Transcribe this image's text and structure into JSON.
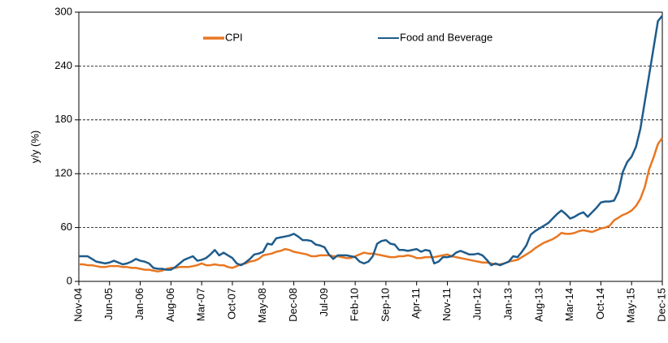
{
  "chart_data": {
    "type": "line",
    "ylabel": "y/y (%)",
    "categories": [
      "Nov-04",
      null,
      null,
      null,
      null,
      null,
      null,
      "Jun-05",
      null,
      null,
      null,
      null,
      null,
      null,
      "Jan-06",
      null,
      null,
      null,
      null,
      null,
      null,
      "Aug-06",
      null,
      null,
      null,
      null,
      null,
      null,
      "Mar-07",
      null,
      null,
      null,
      null,
      null,
      null,
      "Oct-07",
      null,
      null,
      null,
      null,
      null,
      null,
      "May-08",
      null,
      null,
      null,
      null,
      null,
      null,
      "Dec-08",
      null,
      null,
      null,
      null,
      null,
      null,
      "Jul-09",
      null,
      null,
      null,
      null,
      null,
      null,
      "Feb-10",
      null,
      null,
      null,
      null,
      null,
      null,
      "Sep-10",
      null,
      null,
      null,
      null,
      null,
      null,
      "Apr-11",
      null,
      null,
      null,
      null,
      null,
      null,
      "Nov-11",
      null,
      null,
      null,
      null,
      null,
      null,
      "Jun-12",
      null,
      null,
      null,
      null,
      null,
      null,
      "Jan-13",
      null,
      null,
      null,
      null,
      null,
      null,
      "Aug-13",
      null,
      null,
      null,
      null,
      null,
      null,
      "Mar-14",
      null,
      null,
      null,
      null,
      null,
      null,
      "Oct-14",
      null,
      null,
      null,
      null,
      null,
      null,
      "May-15",
      null,
      null,
      null,
      null,
      null,
      null,
      "Dec-15"
    ],
    "series": [
      {
        "name": "CPI",
        "color": "#e87722",
        "values": [
          19,
          19,
          18,
          18,
          17,
          16,
          16,
          17,
          17,
          17,
          16,
          16,
          15,
          15,
          14,
          13,
          13,
          12,
          11,
          12,
          14,
          15,
          15,
          16,
          16,
          16,
          17,
          18,
          20,
          18,
          18,
          19,
          18,
          18,
          16,
          15,
          17,
          19,
          20,
          22,
          23,
          25,
          29,
          30,
          31,
          33,
          34,
          36,
          35,
          33,
          32,
          31,
          30,
          28,
          28,
          29,
          29,
          29,
          28,
          28,
          27,
          26,
          26,
          28,
          30,
          32,
          31,
          31,
          30,
          29,
          28,
          27,
          27,
          28,
          28,
          29,
          28,
          26,
          26,
          27,
          27,
          27,
          28,
          29,
          30,
          28,
          27,
          26,
          25,
          24,
          23,
          22,
          21,
          21,
          20,
          19,
          19,
          20,
          22,
          23,
          24,
          27,
          30,
          33,
          37,
          40,
          43,
          45,
          47,
          50,
          54,
          53,
          53,
          54,
          56,
          57,
          56,
          55,
          57,
          59,
          60,
          62,
          68,
          71,
          74,
          76,
          79,
          84,
          92,
          105,
          125,
          138,
          153,
          160
        ]
      },
      {
        "name": "Food and Beverage",
        "color": "#1f5c8b",
        "values": [
          28,
          28,
          28,
          25,
          22,
          21,
          20,
          21,
          23,
          21,
          19,
          20,
          22,
          25,
          23,
          22,
          20,
          15,
          14,
          14,
          13,
          13,
          16,
          20,
          24,
          26,
          28,
          23,
          24,
          26,
          30,
          35,
          29,
          32,
          29,
          26,
          20,
          18,
          21,
          25,
          30,
          31,
          33,
          42,
          41,
          48,
          49,
          50,
          51,
          53,
          50,
          46,
          46,
          45,
          41,
          40,
          38,
          30,
          25,
          29,
          29,
          29,
          28,
          27,
          22,
          20,
          22,
          28,
          42,
          45,
          46,
          42,
          41,
          35,
          35,
          34,
          35,
          36,
          33,
          35,
          34,
          20,
          22,
          27,
          27,
          28,
          32,
          34,
          32,
          30,
          30,
          31,
          29,
          24,
          18,
          20,
          18,
          20,
          22,
          28,
          27,
          33,
          40,
          52,
          56,
          59,
          62,
          65,
          70,
          75,
          79,
          75,
          70,
          72,
          75,
          77,
          72,
          77,
          82,
          88,
          89,
          89,
          90,
          100,
          122,
          133,
          139,
          150,
          170,
          200,
          230,
          260,
          290,
          296
        ]
      }
    ],
    "ylim": [
      0,
      300
    ],
    "yticks": [
      0,
      60,
      120,
      180,
      240,
      300
    ],
    "grid": true
  }
}
